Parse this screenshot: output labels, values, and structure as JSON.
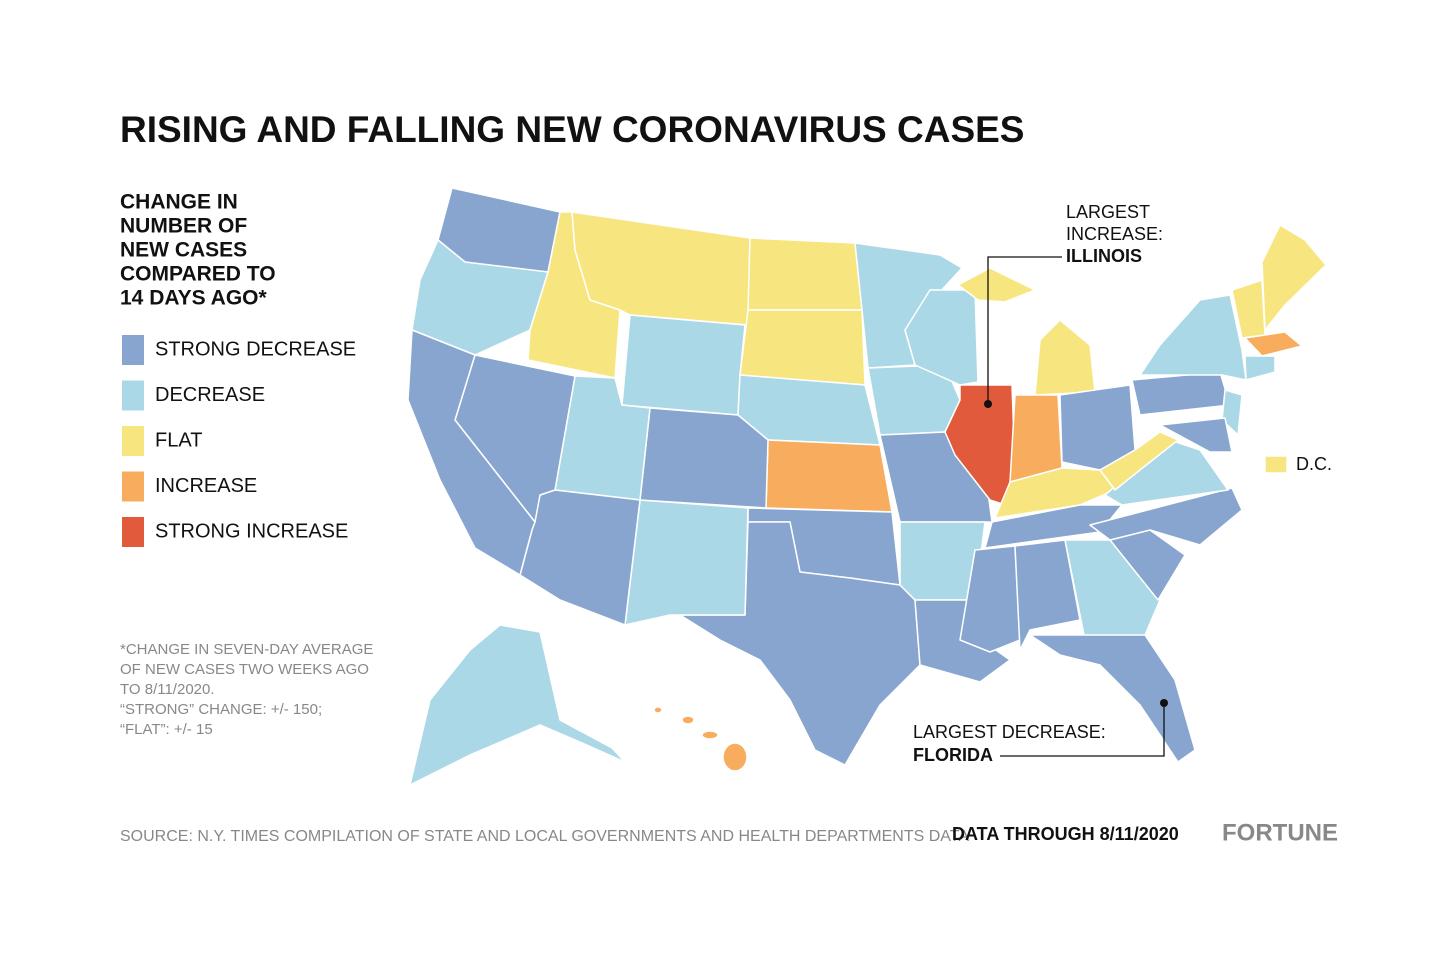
{
  "title": "RISING AND FALLING NEW CORONAVIRUS CASES",
  "legend": {
    "title": [
      "CHANGE IN",
      "NUMBER OF",
      "NEW CASES",
      "COMPARED TO",
      "14 DAYS AGO*"
    ],
    "items": [
      {
        "label": "STRONG DECREASE",
        "color": "#87a5cf"
      },
      {
        "label": "DECREASE",
        "color": "#abd8e6"
      },
      {
        "label": "FLAT",
        "color": "#f7e67f"
      },
      {
        "label": "INCREASE",
        "color": "#f8ad5e"
      },
      {
        "label": "STRONG INCREASE",
        "color": "#e05a3b"
      }
    ]
  },
  "footnote": [
    "*CHANGE IN SEVEN-DAY AVERAGE",
    "OF NEW CASES TWO WEEKS AGO",
    "TO 8/11/2020.",
    "“STRONG” CHANGE: +/- 150;",
    "“FLAT”: +/- 15"
  ],
  "annotations": {
    "increase": {
      "label": [
        "LARGEST",
        "INCREASE:"
      ],
      "state": "ILLINOIS"
    },
    "decrease": {
      "label": "LARGEST DECREASE:",
      "state": "FLORIDA"
    }
  },
  "dc_label": "D.C.",
  "source": "SOURCE: N.Y. TIMES COMPILATION OF STATE AND LOCAL GOVERNMENTS AND HEALTH DEPARTMENTS DATA",
  "data_through": "DATA THROUGH 8/11/2020",
  "brand": "FORTUNE"
}
